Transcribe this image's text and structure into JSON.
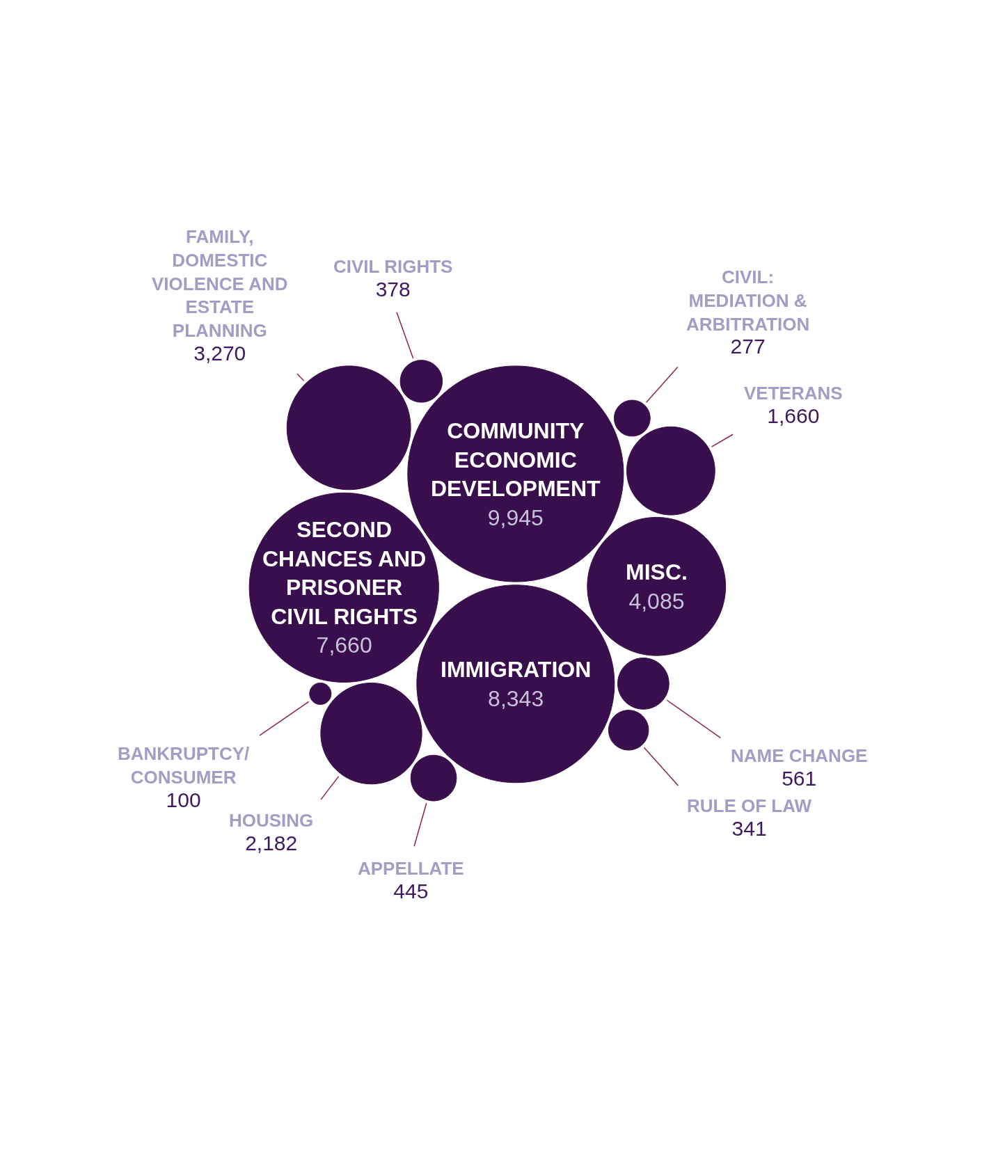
{
  "chart_data": {
    "type": "other",
    "categories": [
      "COMMUNITY ECONOMIC DEVELOPMENT",
      "IMMIGRATION",
      "SECOND CHANCES AND PRISONER CIVIL RIGHTS",
      "MISC.",
      "FAMILY, DOMESTIC VIOLENCE AND ESTATE PLANNING",
      "HOUSING",
      "VETERANS",
      "NAME CHANGE",
      "APPELLATE",
      "CIVIL RIGHTS",
      "RULE OF LAW",
      "CIVIL: MEDIATION & ARBITRATION",
      "BANKRUPTCY/ CONSUMER"
    ],
    "values": [
      9945,
      8343,
      7660,
      4085,
      3270,
      2182,
      1660,
      561,
      445,
      378,
      341,
      277,
      100
    ],
    "value_labels": [
      "9,945",
      "8,343",
      "7,660",
      "4,085",
      "3,270",
      "2,182",
      "1,660",
      "561",
      "445",
      "378",
      "341",
      "277",
      "100"
    ],
    "color": "#380e4c"
  }
}
